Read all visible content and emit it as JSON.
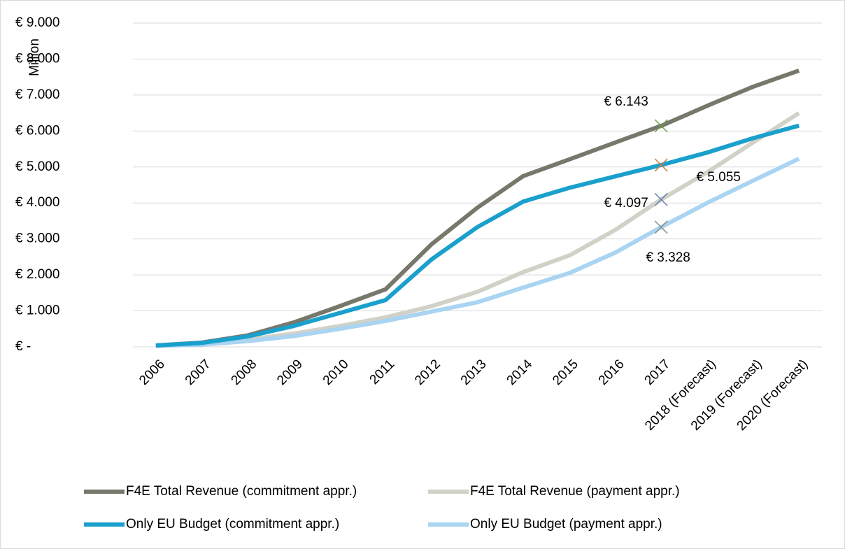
{
  "chart_data": {
    "type": "line",
    "y_label": "Million",
    "categories": [
      "2006",
      "2007",
      "2008",
      "2009",
      "2010",
      "2011",
      "2012",
      "2013",
      "2014",
      "2015",
      "2016",
      "2017",
      "2018 (Forecast)",
      "2019 (Forecast)",
      "2020 (Forecast)"
    ],
    "series": [
      {
        "name": "F4E Total Revenue (commitment appr.)",
        "color": "#77776b",
        "values": [
          40,
          120,
          320,
          680,
          1130,
          1600,
          2850,
          3870,
          4750,
          5210,
          5680,
          6143,
          6700,
          7230,
          7680
        ]
      },
      {
        "name": "F4E Total Revenue (payment appr.)",
        "color": "#d2d1c8",
        "values": [
          30,
          90,
          200,
          370,
          580,
          820,
          1130,
          1530,
          2080,
          2540,
          3250,
          4097,
          4850,
          5680,
          6500
        ]
      },
      {
        "name": "Only EU Budget (commitment appr.)",
        "color": "#1aa0cc",
        "values": [
          40,
          110,
          290,
          580,
          940,
          1300,
          2430,
          3330,
          4040,
          4420,
          4740,
          5055,
          5400,
          5800,
          6150
        ]
      },
      {
        "name": "Only EU Budget (payment appr.)",
        "color": "#a9d4f2",
        "values": [
          30,
          60,
          160,
          300,
          500,
          720,
          980,
          1240,
          1650,
          2050,
          2620,
          3328,
          4000,
          4620,
          5230
        ]
      }
    ],
    "annotations": [
      {
        "text": "€ 6.143",
        "x": "2017",
        "y": 6143,
        "color": "#70a050"
      },
      {
        "text": "€ 5.055",
        "x": "2017",
        "y": 5055,
        "color": "#d08040"
      },
      {
        "text": "€ 4.097",
        "x": "2017",
        "y": 4097,
        "color": "#6080b0"
      },
      {
        "text": "€ 3.328",
        "x": "2017",
        "y": 3328,
        "color": "#909090"
      }
    ],
    "ylim": [
      0,
      9000
    ],
    "yticks": [
      {
        "value": 0,
        "label": "€ -"
      },
      {
        "value": 1000,
        "label": "€ 1.000"
      },
      {
        "value": 2000,
        "label": "€ 2.000"
      },
      {
        "value": 3000,
        "label": "€ 3.000"
      },
      {
        "value": 4000,
        "label": "€ 4.000"
      },
      {
        "value": 5000,
        "label": "€ 5.000"
      },
      {
        "value": 6000,
        "label": "€ 6.000"
      },
      {
        "value": 7000,
        "label": "€ 7.000"
      },
      {
        "value": 8000,
        "label": "€ 8.000"
      },
      {
        "value": 9000,
        "label": "€ 9.000"
      }
    ],
    "grid": true,
    "legend": "bottom"
  }
}
